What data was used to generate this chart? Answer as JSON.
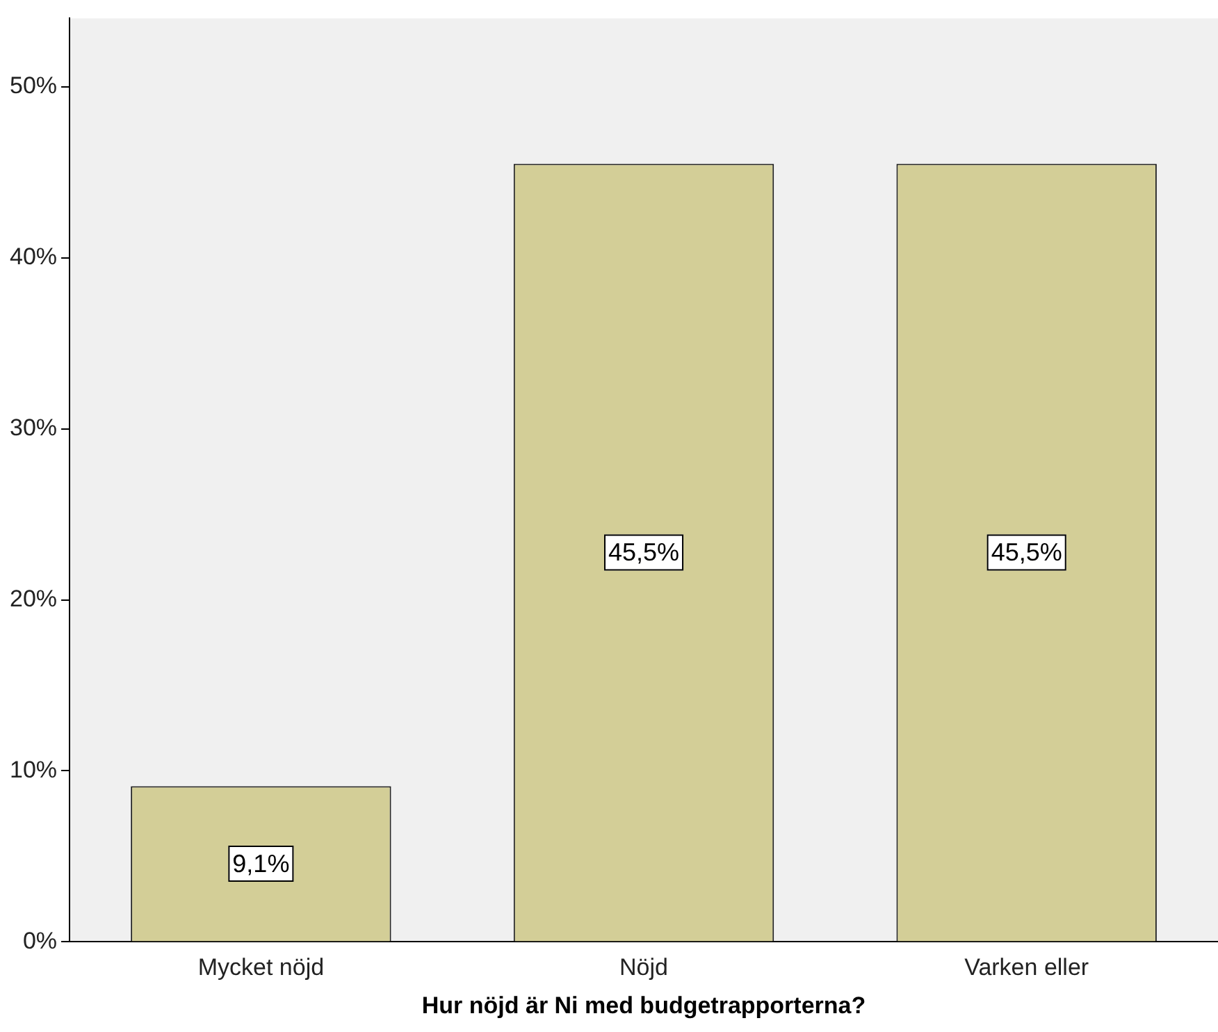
{
  "chart_data": {
    "type": "bar",
    "xlabel": "Hur nöjd är Ni med budgetrapporterna?",
    "categories": [
      "Mycket nöjd",
      "Nöjd",
      "Varken eller"
    ],
    "values": [
      9.1,
      45.5,
      45.5
    ],
    "value_labels": [
      "9,1%",
      "45,5%",
      "45,5%"
    ],
    "color": "#d3ce97",
    "ylim": [
      0,
      54
    ],
    "yticks": [
      {
        "value": 0,
        "label": "0%"
      },
      {
        "value": 10,
        "label": "10%"
      },
      {
        "value": 20,
        "label": "20%"
      },
      {
        "value": 30,
        "label": "30%"
      },
      {
        "value": 40,
        "label": "40%"
      },
      {
        "value": 50,
        "label": "50%"
      }
    ],
    "grid": false,
    "legend": false
  }
}
